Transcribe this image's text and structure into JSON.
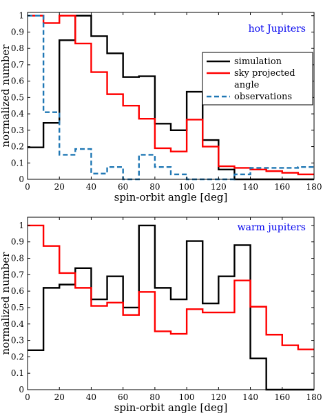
{
  "chart_data": [
    {
      "type": "line",
      "style": "stairs",
      "xlabel": "spin-orbit angle [deg]",
      "ylabel": "normalized number",
      "xlim": [
        0,
        180
      ],
      "ylim": [
        0,
        1.02
      ],
      "xticks": [
        0,
        20,
        40,
        60,
        80,
        100,
        120,
        140,
        160,
        180
      ],
      "yticks": [
        0,
        0.1,
        0.2,
        0.3,
        0.4,
        0.5,
        0.6,
        0.7,
        0.8,
        0.9,
        1
      ],
      "annotation": "hot Jupiters",
      "annotation_color": "#0000ee",
      "legend": {
        "position": "right",
        "entries": [
          {
            "label": "simulation",
            "series": 0
          },
          {
            "label": "sky projected",
            "series": 1
          },
          {
            "label": "angle",
            "series": -1
          },
          {
            "label": "observations",
            "series": 2
          }
        ]
      },
      "bin_edges": [
        0,
        10,
        20,
        30,
        40,
        50,
        60,
        70,
        80,
        90,
        100,
        110,
        120,
        130,
        140,
        150,
        160,
        170,
        180
      ],
      "series": [
        {
          "name": "simulation",
          "color": "#000000",
          "dash": "solid",
          "values": [
            0.195,
            0.345,
            0.85,
            1.0,
            0.875,
            0.77,
            0.625,
            0.63,
            0.34,
            0.3,
            0.535,
            0.24,
            0.06,
            0.0,
            0.0,
            0.0,
            0.0,
            0.0
          ]
        },
        {
          "name": "sky projected angle",
          "color": "#ff0000",
          "dash": "solid",
          "values": [
            1.0,
            0.955,
            1.0,
            0.83,
            0.655,
            0.52,
            0.45,
            0.37,
            0.19,
            0.17,
            0.365,
            0.2,
            0.08,
            0.07,
            0.06,
            0.05,
            0.04,
            0.03
          ]
        },
        {
          "name": "observations",
          "color": "#1f77b4",
          "dash": "dashed",
          "values": [
            1.0,
            0.41,
            0.15,
            0.185,
            0.035,
            0.075,
            0.0,
            0.15,
            0.075,
            0.03,
            0.0,
            0.0,
            0.0,
            0.03,
            0.07,
            0.07,
            0.07,
            0.075
          ]
        }
      ]
    },
    {
      "type": "line",
      "style": "stairs",
      "xlabel": "spin-orbit angle [deg]",
      "ylabel": "normalized number",
      "xlim": [
        0,
        180
      ],
      "ylim": [
        0,
        1.05
      ],
      "xticks": [
        0,
        20,
        40,
        60,
        80,
        100,
        120,
        140,
        160,
        180
      ],
      "yticks": [
        0,
        0.1,
        0.2,
        0.3,
        0.4,
        0.5,
        0.6,
        0.7,
        0.8,
        0.9,
        1
      ],
      "annotation": "warm jupiters",
      "annotation_color": "#0000ee",
      "bin_edges": [
        0,
        10,
        20,
        30,
        40,
        50,
        60,
        70,
        80,
        90,
        100,
        110,
        120,
        130,
        140,
        150,
        160,
        170,
        180
      ],
      "series": [
        {
          "name": "simulation",
          "color": "#000000",
          "dash": "solid",
          "values": [
            0.24,
            0.62,
            0.64,
            0.74,
            0.55,
            0.69,
            0.5,
            1.0,
            0.62,
            0.55,
            0.905,
            0.525,
            0.69,
            0.88,
            0.19,
            0.0,
            0.0,
            0.0
          ]
        },
        {
          "name": "sky projected angle",
          "color": "#ff0000",
          "dash": "solid",
          "values": [
            1.0,
            0.875,
            0.71,
            0.62,
            0.51,
            0.53,
            0.455,
            0.595,
            0.355,
            0.34,
            0.49,
            0.47,
            0.47,
            0.665,
            0.505,
            0.335,
            0.27,
            0.245
          ]
        }
      ]
    }
  ]
}
